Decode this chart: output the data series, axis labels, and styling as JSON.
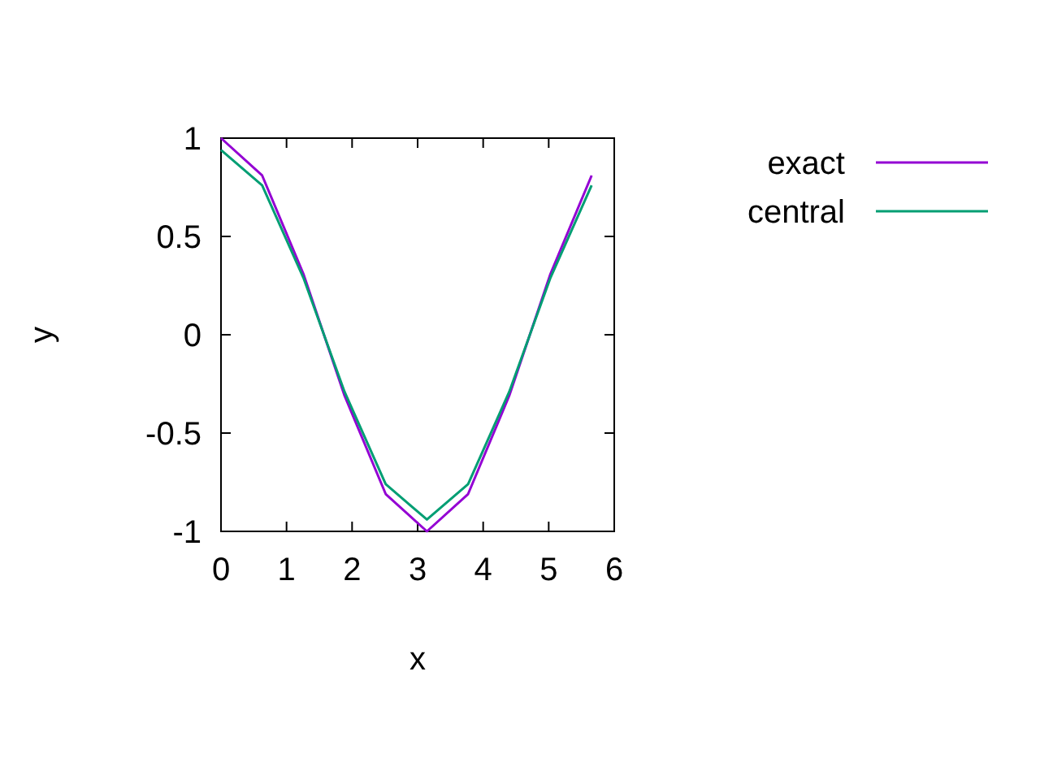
{
  "chart_data": {
    "type": "line",
    "xlabel": "x",
    "ylabel": "y",
    "x": [
      0,
      0.628,
      1.257,
      1.885,
      2.513,
      3.142,
      3.77,
      4.398,
      5.027,
      5.655
    ],
    "series": [
      {
        "name": "exact",
        "color": "#9400d3",
        "values": [
          1,
          0.81,
          0.31,
          -0.31,
          -0.81,
          -1,
          -0.81,
          -0.31,
          0.31,
          0.81
        ]
      },
      {
        "name": "central",
        "color": "#009e73",
        "values": [
          0.94,
          0.76,
          0.29,
          -0.29,
          -0.76,
          -0.94,
          -0.76,
          -0.29,
          0.29,
          0.76
        ]
      }
    ],
    "xlim": [
      0,
      6
    ],
    "xticks": [
      0,
      1,
      2,
      3,
      4,
      5,
      6
    ],
    "ylim": [
      -1,
      1
    ],
    "yticks": [
      -1,
      -0.5,
      0,
      0.5,
      1
    ],
    "grid": false,
    "legend": "top right",
    "marker": "none",
    "line_style": "solid"
  }
}
